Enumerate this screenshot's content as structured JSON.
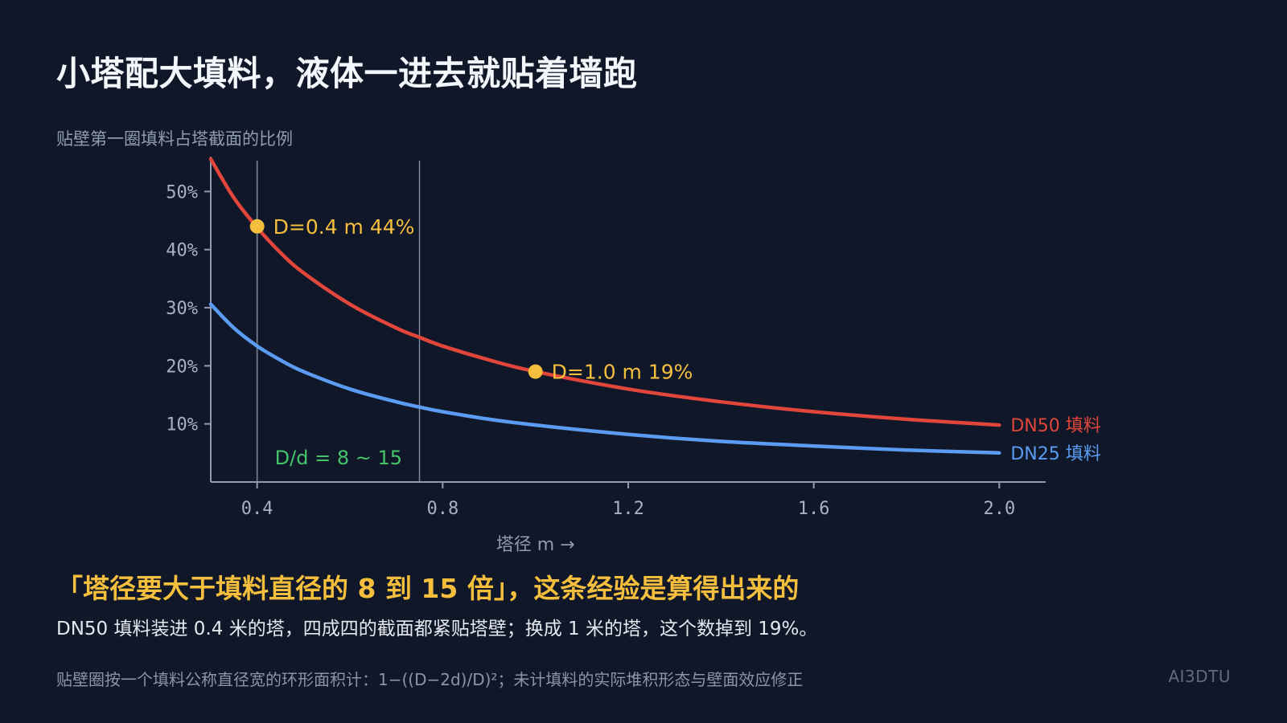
{
  "page": {
    "title": "小塔配大填料，液体一进去就贴着墙跑",
    "headline": "「塔径要大于填料直径的 8 到 15 倍」，这条经验是算得出来的",
    "subline": "DN50 填料装进 0.4 米的塔，四成四的截面都紧贴塔壁；换成 1 米的塔，这个数掉到 19%。",
    "footnote": "贴壁圈按一个填料公称直径宽的环形面积计：1−((D−2d)/D)²；未计填料的实际堆积形态与壁面效应修正",
    "brand": "AI3DTU"
  },
  "colors": {
    "background": "#0f1728",
    "dn50": "#e2463b",
    "dn25": "#5b9cf2",
    "highlight": "#f5bf3d",
    "range": "#45c46a",
    "axis": "#8f9bb0"
  },
  "chart_data": {
    "type": "line",
    "title": "",
    "xlabel": "塔径  m →",
    "ylabel": "贴壁第一圈填料占塔截面的比例",
    "xlim": [
      0.3,
      2.1
    ],
    "ylim": [
      0,
      0.56
    ],
    "x_ticks": [
      0.4,
      0.8,
      1.2,
      1.6,
      2.0
    ],
    "x_tick_labels": [
      "0.4",
      "0.8",
      "1.2",
      "1.6",
      "2.0"
    ],
    "y_ticks": [
      0.1,
      0.2,
      0.3,
      0.4,
      0.5
    ],
    "y_tick_labels": [
      "10%",
      "20%",
      "30%",
      "40%",
      "50%"
    ],
    "grid": false,
    "series": [
      {
        "name": "DN50 填料",
        "color": "#e2463b",
        "x": [
          0.3,
          0.35,
          0.4,
          0.45,
          0.5,
          0.6,
          0.7,
          0.75,
          0.8,
          0.9,
          1.0,
          1.2,
          1.4,
          1.6,
          1.8,
          2.0
        ],
        "y": [
          0.556,
          0.489,
          0.438,
          0.395,
          0.36,
          0.306,
          0.265,
          0.249,
          0.234,
          0.21,
          0.19,
          0.16,
          0.138,
          0.121,
          0.108,
          0.098
        ]
      },
      {
        "name": "DN25 填料",
        "color": "#5b9cf2",
        "x": [
          0.3,
          0.35,
          0.4,
          0.45,
          0.5,
          0.6,
          0.7,
          0.75,
          0.8,
          0.9,
          1.0,
          1.2,
          1.4,
          1.6,
          1.8,
          2.0
        ],
        "y": [
          0.306,
          0.265,
          0.234,
          0.21,
          0.19,
          0.16,
          0.138,
          0.129,
          0.121,
          0.108,
          0.098,
          0.082,
          0.07,
          0.062,
          0.055,
          0.05
        ]
      }
    ],
    "range_band": {
      "x_start": 0.4,
      "x_end": 0.75,
      "label": "D/d = 8 ~ 15"
    },
    "annotations": [
      {
        "x": 0.4,
        "y": 0.44,
        "label": "D=0.4 m    44%"
      },
      {
        "x": 1.0,
        "y": 0.19,
        "label": "D=1.0 m    19%"
      }
    ]
  }
}
